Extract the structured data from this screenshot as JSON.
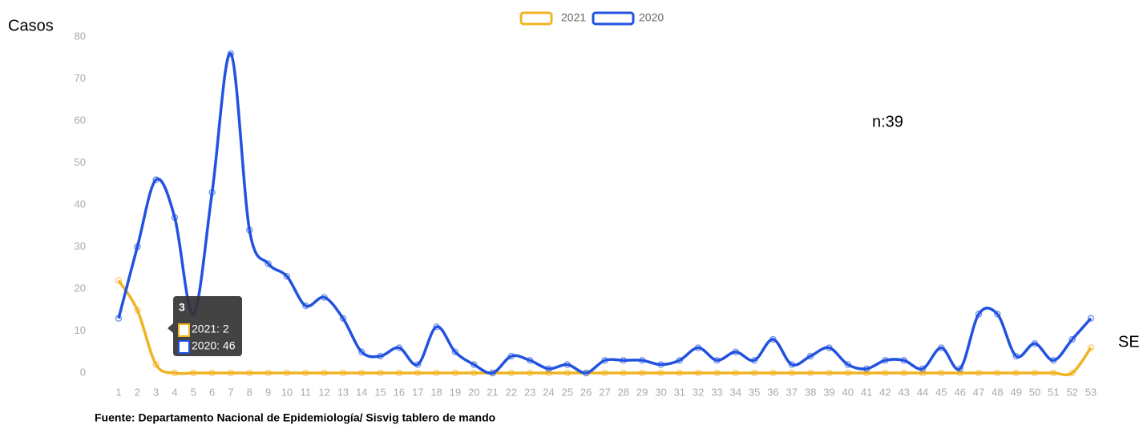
{
  "chart_data": {
    "type": "line",
    "y_label": "Casos",
    "x_label": "SE",
    "annotation": "n:39",
    "source": "Fuente: Departamento Nacional de Epidemiología/ Sisvig tablero de mando",
    "x": [
      1,
      2,
      3,
      4,
      5,
      6,
      7,
      8,
      9,
      10,
      11,
      12,
      13,
      14,
      15,
      16,
      17,
      18,
      19,
      20,
      21,
      22,
      23,
      24,
      25,
      26,
      27,
      28,
      29,
      30,
      31,
      32,
      33,
      34,
      35,
      36,
      37,
      38,
      39,
      40,
      41,
      42,
      43,
      44,
      45,
      46,
      47,
      48,
      49,
      50,
      51,
      52,
      53
    ],
    "xlim": [
      1,
      53
    ],
    "xticks": [
      1,
      2,
      3,
      4,
      5,
      6,
      7,
      8,
      9,
      10,
      11,
      12,
      13,
      14,
      15,
      16,
      17,
      18,
      19,
      20,
      21,
      22,
      23,
      24,
      25,
      26,
      27,
      28,
      29,
      30,
      31,
      32,
      33,
      34,
      35,
      36,
      37,
      38,
      39,
      40,
      41,
      42,
      43,
      44,
      45,
      46,
      47,
      48,
      49,
      50,
      51,
      52,
      53
    ],
    "ylim": [
      0,
      80
    ],
    "yticks": [
      0,
      10,
      20,
      30,
      40,
      50,
      60,
      70,
      80
    ],
    "grid": false,
    "legend": "top",
    "series": [
      {
        "name": "2021",
        "color": "#f0b323",
        "values": [
          22,
          15,
          2,
          0,
          0,
          0,
          0,
          0,
          0,
          0,
          0,
          0,
          0,
          0,
          0,
          0,
          0,
          0,
          0,
          0,
          0,
          0,
          0,
          0,
          0,
          0,
          0,
          0,
          0,
          0,
          0,
          0,
          0,
          0,
          0,
          0,
          0,
          0,
          0,
          0,
          0,
          0,
          0,
          0,
          0,
          0,
          0,
          0,
          0,
          0,
          0,
          0,
          6
        ]
      },
      {
        "name": "2020",
        "color": "#2152e0",
        "values": [
          13,
          30,
          46,
          37,
          14,
          43,
          76,
          34,
          26,
          23,
          16,
          18,
          13,
          5,
          4,
          6,
          2,
          11,
          5,
          2,
          0,
          4,
          3,
          1,
          2,
          0,
          3,
          3,
          3,
          2,
          3,
          6,
          3,
          5,
          3,
          8,
          2,
          4,
          6,
          2,
          1,
          3,
          3,
          1,
          6,
          1,
          14,
          14,
          4,
          7,
          3,
          8,
          13
        ]
      }
    ],
    "tooltip": {
      "title": "3",
      "items": [
        "2021: 2",
        "2020: 46"
      ]
    }
  }
}
